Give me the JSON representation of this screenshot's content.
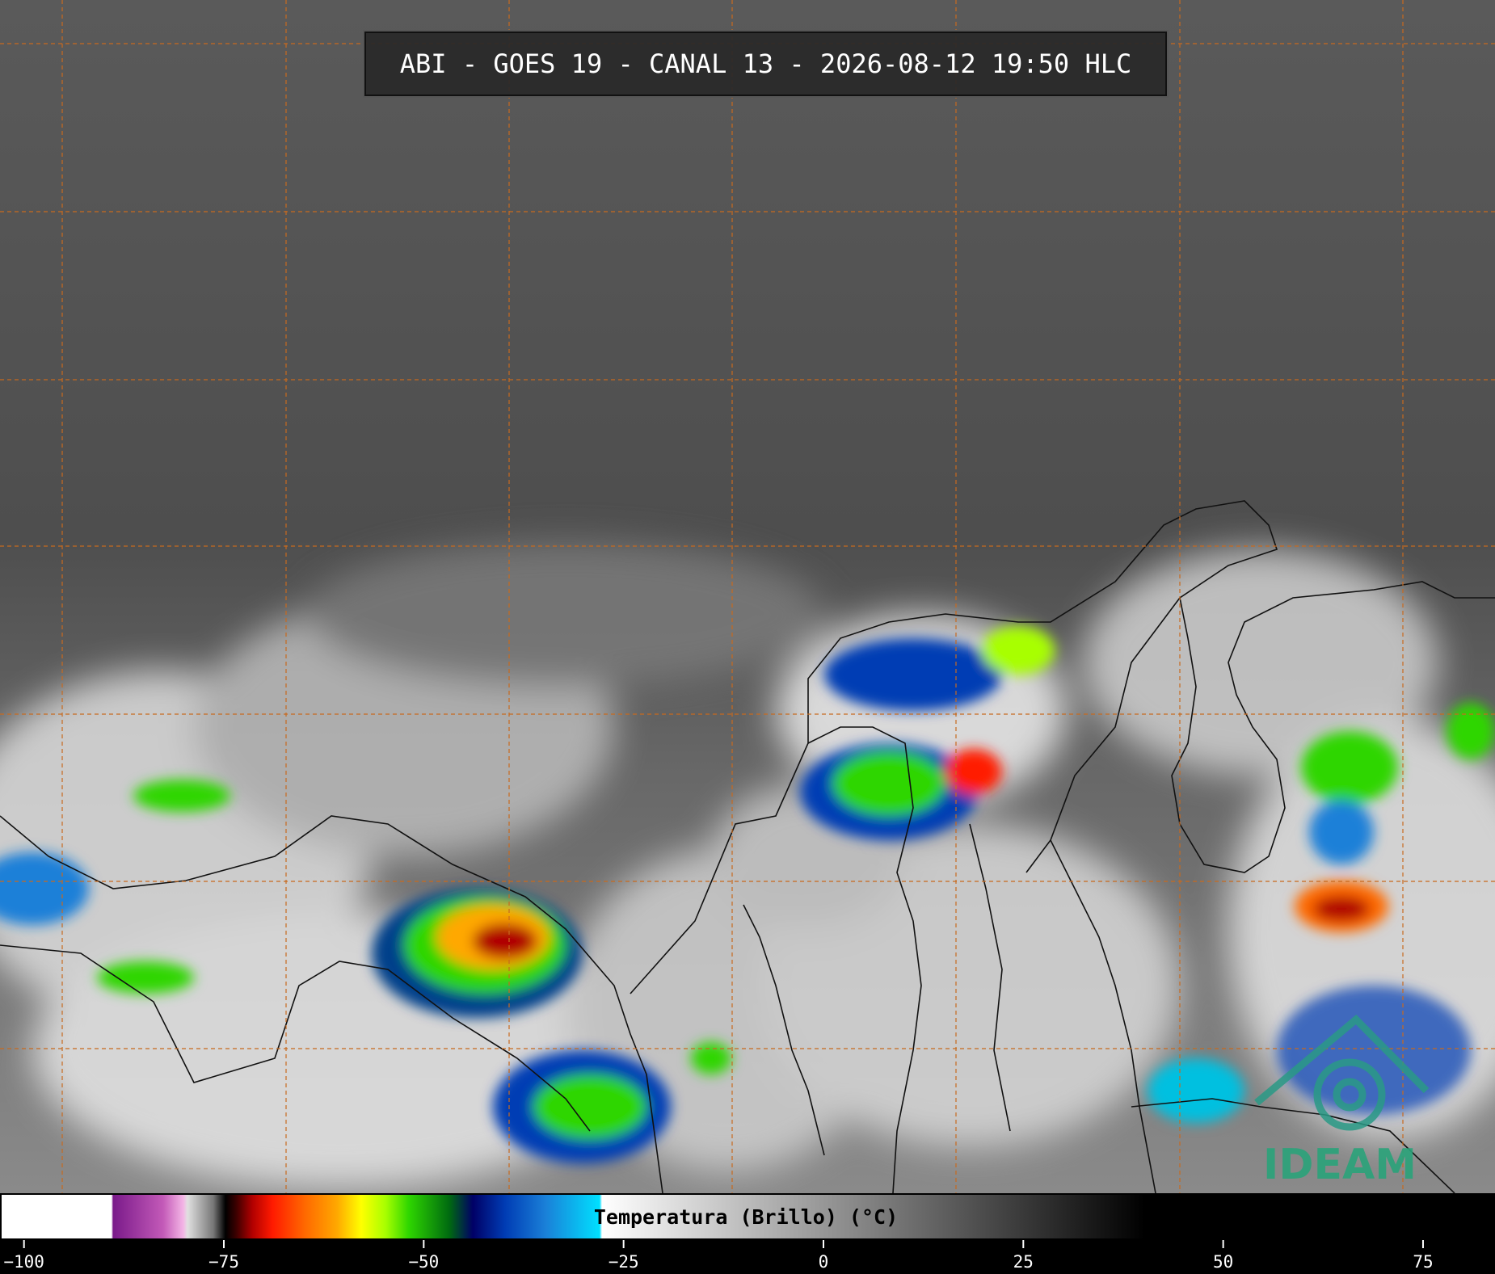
{
  "header": {
    "title": "ABI - GOES 19 - CANAL 13 - 2026-08-12 19:50 HLC"
  },
  "logo": "IDEAM",
  "colorbar": {
    "label": "Temperatura (Brillo) (°C)",
    "lim": [
      -103,
      84
    ],
    "ticks": [
      {
        "value": -100,
        "label": "−100"
      },
      {
        "value": -75,
        "label": "−75"
      },
      {
        "value": -50,
        "label": "−50"
      },
      {
        "value": -25,
        "label": "−25"
      },
      0,
      25,
      50,
      75
    ]
  }
}
